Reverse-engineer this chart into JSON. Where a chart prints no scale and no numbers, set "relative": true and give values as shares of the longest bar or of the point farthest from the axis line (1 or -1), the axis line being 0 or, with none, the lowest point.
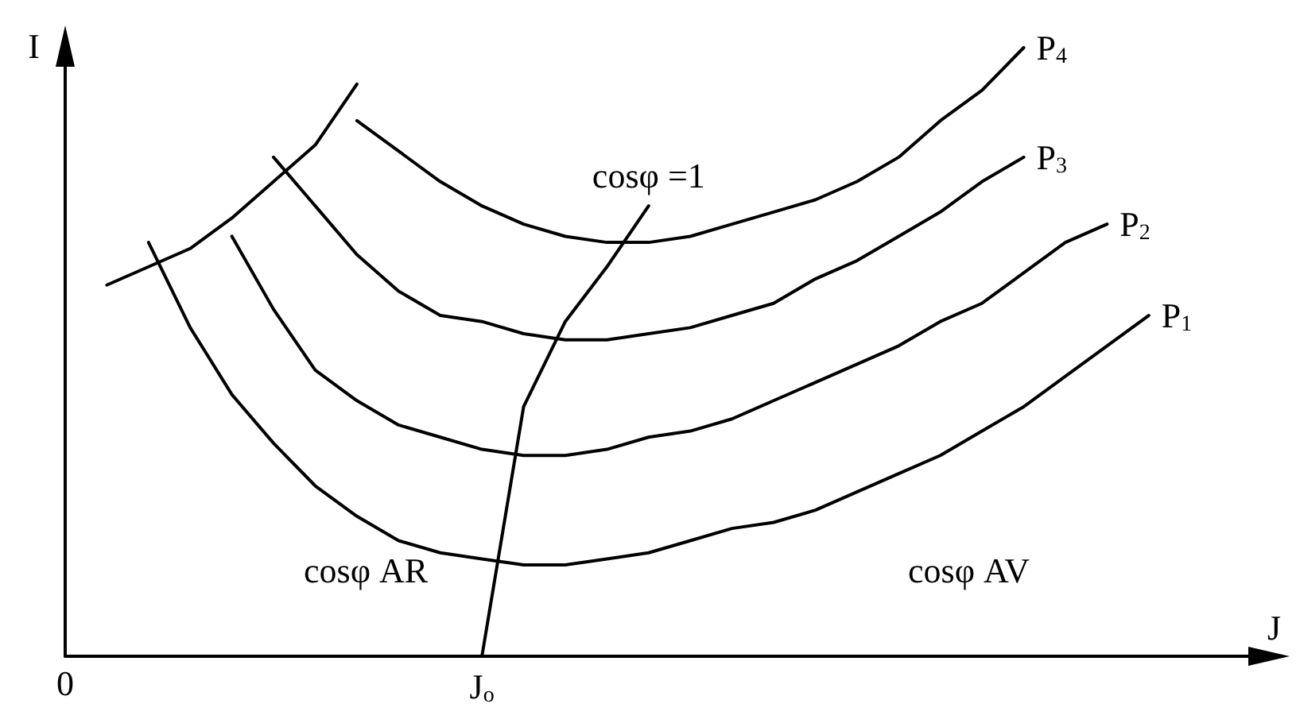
{
  "chart_data": {
    "type": "line",
    "relative": true,
    "xlabel": "J",
    "ylabel": "I",
    "grid": false,
    "legend": false,
    "marker": "none",
    "line_style": "solid",
    "categories": [
      "0",
      null,
      null,
      null,
      null,
      null,
      null,
      null,
      null,
      null,
      "J$_{o}$",
      null,
      null,
      null,
      null,
      null,
      null,
      null,
      null,
      null,
      null,
      null,
      null,
      null,
      null,
      null,
      null,
      null,
      null,
      null
    ],
    "annotations": [
      "cosφ AR",
      "cosφ AV"
    ],
    "series": [
      {
        "name": "P$_{1}$",
        "color": "#000000",
        "values": [
          null,
          null,
          0.68,
          0.54,
          0.43,
          0.35,
          0.28,
          0.23,
          0.19,
          0.17,
          0.16,
          0.15,
          0.15,
          0.16,
          0.17,
          0.19,
          0.21,
          0.22,
          0.24,
          0.27,
          0.3,
          0.33,
          0.37,
          0.41,
          0.46,
          0.51,
          0.56,
          null,
          null,
          null
        ]
      },
      {
        "name": "P$_{2}$",
        "color": "#000000",
        "values": [
          null,
          null,
          null,
          null,
          0.69,
          0.57,
          0.47,
          0.42,
          0.38,
          0.36,
          0.34,
          0.33,
          0.33,
          0.34,
          0.36,
          0.37,
          0.39,
          0.42,
          0.45,
          0.48,
          0.51,
          0.55,
          0.58,
          0.63,
          0.68,
          0.71,
          null,
          null,
          null,
          null
        ]
      },
      {
        "name": "P$_{3}$",
        "color": "#000000",
        "values": [
          null,
          null,
          null,
          null,
          null,
          0.82,
          0.74,
          0.66,
          0.6,
          0.56,
          0.55,
          0.53,
          0.52,
          0.52,
          0.53,
          0.54,
          0.56,
          0.58,
          0.62,
          0.65,
          0.69,
          0.73,
          0.78,
          0.82,
          null,
          null,
          null,
          null,
          null,
          null
        ]
      },
      {
        "name": "P$_{4}$",
        "color": "#000000",
        "values": [
          null,
          null,
          null,
          null,
          null,
          null,
          null,
          0.88,
          0.83,
          0.78,
          0.74,
          0.71,
          0.69,
          0.68,
          0.68,
          0.69,
          0.71,
          0.73,
          0.75,
          0.78,
          0.82,
          0.88,
          0.93,
          1.0,
          null,
          null,
          null,
          null,
          null,
          null
        ]
      },
      {
        "color": "#000000",
        "values": [
          null,
          0.61,
          0.64,
          0.67,
          0.72,
          0.78,
          0.84,
          0.94,
          null,
          null,
          null,
          null,
          null,
          null,
          null,
          null,
          null,
          null,
          null,
          null,
          null,
          null,
          null,
          null,
          null,
          null,
          null,
          null,
          null,
          null
        ]
      },
      {
        "name": "cosφ =1",
        "color": "#000000",
        "values": [
          null,
          null,
          null,
          null,
          null,
          null,
          null,
          null,
          null,
          null,
          0,
          0.41,
          0.55,
          0.64,
          0.74,
          null,
          null,
          null,
          null,
          null,
          null,
          null,
          null,
          null,
          null,
          null,
          null,
          null,
          null,
          null
        ]
      }
    ]
  }
}
